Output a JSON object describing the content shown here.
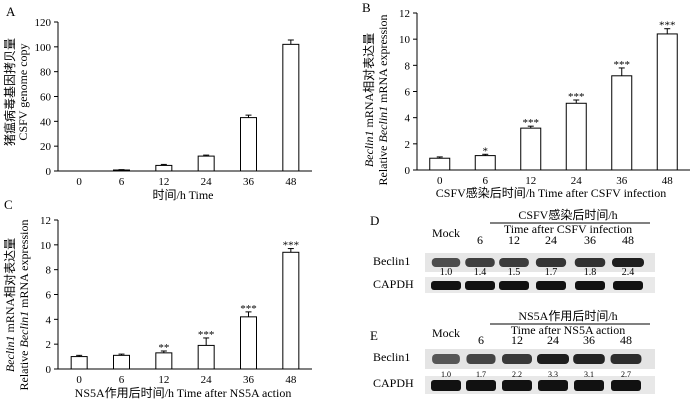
{
  "chart_data": [
    {
      "panel": "A",
      "type": "bar",
      "categories": [
        "0",
        "6",
        "12",
        "24",
        "36",
        "48"
      ],
      "values": [
        0,
        0.8,
        4.5,
        12,
        43,
        102
      ],
      "errors": [
        0,
        0.3,
        0.8,
        0.8,
        2,
        3.5
      ],
      "significance": [
        "",
        "",
        "",
        "",
        "",
        ""
      ],
      "yticks": [
        "0",
        "20",
        "40",
        "60",
        "80",
        "100",
        "120"
      ],
      "ylim": [
        0,
        120
      ],
      "ylabel_cn": "猪瘟病毒基因拷贝量",
      "ylabel_en": "CSFV genome copy",
      "xlabel": "时间/h  Time"
    },
    {
      "panel": "B",
      "type": "bar",
      "categories": [
        "0",
        "6",
        "12",
        "24",
        "36",
        "48"
      ],
      "values": [
        0.9,
        1.1,
        3.2,
        5.1,
        7.2,
        10.4
      ],
      "errors": [
        0.1,
        0.1,
        0.15,
        0.25,
        0.6,
        0.4
      ],
      "significance": [
        "",
        "*",
        "***",
        "***",
        "***",
        "***"
      ],
      "yticks": [
        "0",
        "2",
        "4",
        "6",
        "8",
        "10",
        "12"
      ],
      "ylim": [
        0,
        12
      ],
      "ylabel_cn_prefix": "Beclin1",
      "ylabel_cn_suffix": " mRNA相对表达量",
      "ylabel_en_prefix": "Relative ",
      "ylabel_en_italic": "Beclin1",
      "ylabel_en_suffix": " mRNA expression",
      "xlabel": "CSFV感染后时间/h  Time after CSFV infection"
    },
    {
      "panel": "C",
      "type": "bar",
      "categories": [
        "0",
        "6",
        "12",
        "24",
        "36",
        "48"
      ],
      "values": [
        1.0,
        1.1,
        1.3,
        1.9,
        4.2,
        9.4
      ],
      "errors": [
        0.1,
        0.1,
        0.15,
        0.6,
        0.4,
        0.3
      ],
      "significance": [
        "",
        "",
        "**",
        "***",
        "***",
        "***"
      ],
      "yticks": [
        "0",
        "2",
        "4",
        "6",
        "8",
        "10",
        "12"
      ],
      "ylim": [
        0,
        12
      ],
      "ylabel_cn_prefix": "Beclin1",
      "ylabel_cn_suffix": " mRNA相对表达量",
      "ylabel_en_prefix": "Relative ",
      "ylabel_en_italic": "Beclin1",
      "ylabel_en_suffix": " mRNA expression",
      "xlabel": "NS5A作用后时间/h  Time after NS5A action"
    }
  ],
  "blots": [
    {
      "panel": "D",
      "header_cn": "CSFV感染后时间/h",
      "header_en": "Time after CSFV infection",
      "lanes": [
        "Mock",
        "6",
        "12",
        "24",
        "36",
        "48"
      ],
      "protein": "Beclin1",
      "control": "CAPDH",
      "values": [
        "1.0",
        "1.4",
        "1.5",
        "1.7",
        "1.8",
        "2.4"
      ]
    },
    {
      "panel": "E",
      "header_cn": "NS5A作用后时间/h",
      "header_en": "Time after NS5A action",
      "lanes": [
        "Mock",
        "6",
        "12",
        "24",
        "36",
        "48"
      ],
      "protein": "Beclin1",
      "control": "CAPDH",
      "values": [
        "1.0",
        "1.7",
        "2.2",
        "3.3",
        "3.1",
        "2.7"
      ]
    }
  ]
}
